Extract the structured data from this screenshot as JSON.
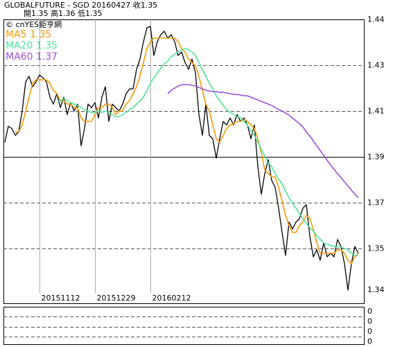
{
  "header": {
    "line1": "GLOBALFUTURE - SGD    20160427    收1.35",
    "line2": "開1.35    高1.36    低1.35"
  },
  "watermark": "© cnYES鉅亨網",
  "y_axis_min_label": "1.34",
  "indicator_panel": {
    "labels": [
      "0",
      "0",
      "0",
      "0"
    ]
  },
  "chart_data": {
    "type": "line",
    "categories": [
      null,
      null,
      null,
      null,
      null,
      null,
      null,
      null,
      null,
      null,
      "20151112",
      null,
      null,
      null,
      null,
      null,
      null,
      null,
      null,
      null,
      null,
      null,
      null,
      null,
      null,
      null,
      "20151229",
      null,
      null,
      null,
      null,
      null,
      null,
      null,
      null,
      null,
      null,
      null,
      null,
      null,
      null,
      null,
      "20160212",
      null,
      null,
      null,
      null,
      null,
      null,
      null,
      null,
      null,
      null,
      null,
      null,
      null,
      null,
      null,
      null,
      null,
      null,
      null,
      null,
      null,
      null,
      null,
      null,
      null,
      null,
      null,
      null,
      null,
      null,
      null,
      null,
      null,
      null,
      null,
      null,
      null,
      null,
      null,
      null,
      null,
      null,
      null,
      null,
      null,
      null,
      null,
      null,
      null,
      null,
      null,
      null,
      null,
      null,
      null,
      null,
      null,
      null,
      null,
      null
    ],
    "ylim": [
      1.3267,
      1.4449
    ],
    "yticks": [
      {
        "value": 1.4449,
        "label": "1.44"
      },
      {
        "value": 1.4251,
        "label": "1.43"
      },
      {
        "value": 1.4053,
        "label": "1.41"
      },
      {
        "value": 1.3855,
        "label": "1.39"
      },
      {
        "value": 1.3657,
        "label": "1.37"
      },
      {
        "value": 1.3459,
        "label": "1.35"
      }
    ],
    "series": [
      {
        "color": "#000000",
        "values": [
          1.3918,
          1.3987,
          1.3978,
          1.3948,
          1.3963,
          1.4053,
          1.4179,
          1.4203,
          1.4158,
          1.4179,
          1.4209,
          1.4197,
          1.4179,
          1.4113,
          1.4083,
          1.4128,
          1.4068,
          1.4113,
          1.4038,
          1.4089,
          1.4053,
          1.4083,
          1.3903,
          1.3978,
          1.4083,
          1.4068,
          1.4089,
          1.4023,
          1.4113,
          1.4158,
          1.4008,
          1.4083,
          1.4068,
          1.4053,
          1.4083,
          1.4128,
          1.4149,
          1.4149,
          1.4233,
          1.4278,
          1.4353,
          1.4413,
          1.4419,
          1.4293,
          1.4353,
          1.4383,
          1.4398,
          1.4368,
          1.4383,
          1.4353,
          1.4293,
          1.4308,
          1.4263,
          1.4233,
          1.4278,
          1.4218,
          1.4038,
          1.3948,
          1.4083,
          1.3948,
          1.3933,
          1.3849,
          1.3933,
          1.4008,
          1.3993,
          1.4023,
          1.3993,
          1.4038,
          1.4008,
          1.4023,
          1.3993,
          1.3933,
          1.3993,
          1.3813,
          1.3693,
          1.3783,
          1.3843,
          1.3753,
          1.3723,
          1.3633,
          1.3528,
          1.3429,
          1.3573,
          1.3543,
          1.3573,
          1.3588,
          1.3633,
          1.3648,
          1.3513,
          1.3423,
          1.3453,
          1.3408,
          1.3483,
          1.3423,
          1.3438,
          1.3423,
          1.3498,
          1.3468,
          1.3393,
          1.3279,
          1.3393,
          1.3468,
          1.3438
        ]
      },
      {
        "name": "MA5 1.35",
        "color": "#f59a0a",
        "values": [
          null,
          null,
          null,
          1.3963,
          1.3963,
          1.3993,
          1.4053,
          1.4113,
          1.4173,
          1.4188,
          1.4188,
          1.4188,
          1.4188,
          1.4173,
          1.4143,
          1.4128,
          1.4098,
          1.4098,
          1.4083,
          1.4083,
          1.4068,
          1.4068,
          1.4023,
          1.4008,
          1.4008,
          1.4008,
          1.4038,
          1.4068,
          1.4068,
          1.4083,
          1.4083,
          1.4068,
          1.4038,
          1.4053,
          1.4053,
          1.4083,
          1.4098,
          1.4128,
          1.4158,
          1.4203,
          1.4263,
          1.4323,
          1.4353,
          1.4368,
          1.4368,
          1.4368,
          1.4368,
          1.4368,
          1.4368,
          1.4368,
          1.4353,
          1.4323,
          1.4308,
          1.4278,
          1.4263,
          1.4248,
          1.4203,
          1.4143,
          1.4083,
          1.4053,
          1.3993,
          1.3933,
          1.3918,
          1.3948,
          1.3978,
          1.3993,
          1.3999,
          1.4008,
          1.4008,
          1.4017,
          1.4008,
          1.3993,
          1.3978,
          1.3933,
          1.3873,
          1.3798,
          1.3783,
          1.3768,
          1.3768,
          1.3723,
          1.3663,
          1.3603,
          1.3558,
          1.3528,
          1.3528,
          1.3558,
          1.3573,
          1.3603,
          1.3588,
          1.3543,
          1.3483,
          1.3438,
          1.3438,
          1.3438,
          1.3438,
          1.3438,
          1.3453,
          1.3453,
          1.3438,
          1.3408,
          1.3393,
          1.3423,
          1.3438
        ]
      },
      {
        "name": "MA20 1.35",
        "color": "#4fe39a",
        "values": [
          null,
          null,
          null,
          null,
          null,
          null,
          null,
          null,
          null,
          null,
          null,
          null,
          null,
          null,
          null,
          1.4098,
          1.4098,
          1.4107,
          1.4098,
          1.4089,
          1.4083,
          1.4077,
          1.4068,
          1.4059,
          1.4053,
          1.4047,
          1.4047,
          1.4053,
          1.4047,
          1.4053,
          1.4047,
          1.4038,
          1.4029,
          1.4029,
          1.4038,
          1.4047,
          1.4059,
          1.4068,
          1.4083,
          1.4098,
          1.4113,
          1.4143,
          1.4173,
          1.4197,
          1.4218,
          1.4239,
          1.4257,
          1.4269,
          1.4287,
          1.4299,
          1.4308,
          1.4317,
          1.4323,
          1.4317,
          1.4308,
          1.4293,
          1.4263,
          1.4233,
          1.4203,
          1.4173,
          1.4149,
          1.4119,
          1.4098,
          1.4077,
          1.4059,
          1.4047,
          1.4038,
          1.4029,
          1.4023,
          1.4008,
          1.3993,
          1.3969,
          1.3948,
          1.3918,
          1.3888,
          1.3858,
          1.3828,
          1.3813,
          1.3783,
          1.3759,
          1.3738,
          1.3708,
          1.3678,
          1.3654,
          1.3633,
          1.3609,
          1.3588,
          1.3567,
          1.3549,
          1.3534,
          1.3513,
          1.3498,
          1.3483,
          1.3477,
          1.3471,
          1.3468,
          1.3468,
          1.3465,
          1.3459,
          1.3453,
          1.3438,
          1.3429,
          1.3429
        ]
      },
      {
        "name": "MA60 1.37",
        "color": "#9a4fe0",
        "values": [
          null,
          null,
          null,
          null,
          null,
          null,
          null,
          null,
          null,
          null,
          null,
          null,
          null,
          null,
          null,
          null,
          null,
          null,
          null,
          null,
          null,
          null,
          null,
          null,
          null,
          null,
          null,
          null,
          null,
          null,
          null,
          null,
          null,
          null,
          null,
          null,
          null,
          null,
          null,
          null,
          null,
          null,
          null,
          null,
          null,
          null,
          null,
          1.4128,
          1.4143,
          1.4152,
          1.4161,
          1.4167,
          1.4167,
          1.4167,
          1.4164,
          1.4161,
          1.4155,
          1.4149,
          1.4143,
          1.414,
          1.4137,
          1.4137,
          1.4134,
          1.4134,
          1.4131,
          1.4128,
          1.4125,
          1.4125,
          1.4122,
          1.4119,
          1.4119,
          1.4113,
          1.4107,
          1.4101,
          1.4095,
          1.4089,
          1.4083,
          1.4077,
          1.4068,
          1.4059,
          1.4053,
          1.4044,
          1.4035,
          1.4023,
          1.4011,
          1.3999,
          1.3984,
          1.3963,
          1.3945,
          1.3924,
          1.3903,
          1.3882,
          1.3861,
          1.384,
          1.3819,
          1.3801,
          1.3783,
          1.3765,
          1.3747,
          1.3729,
          1.3711,
          1.3693,
          1.3678
        ]
      }
    ],
    "grid": true
  }
}
